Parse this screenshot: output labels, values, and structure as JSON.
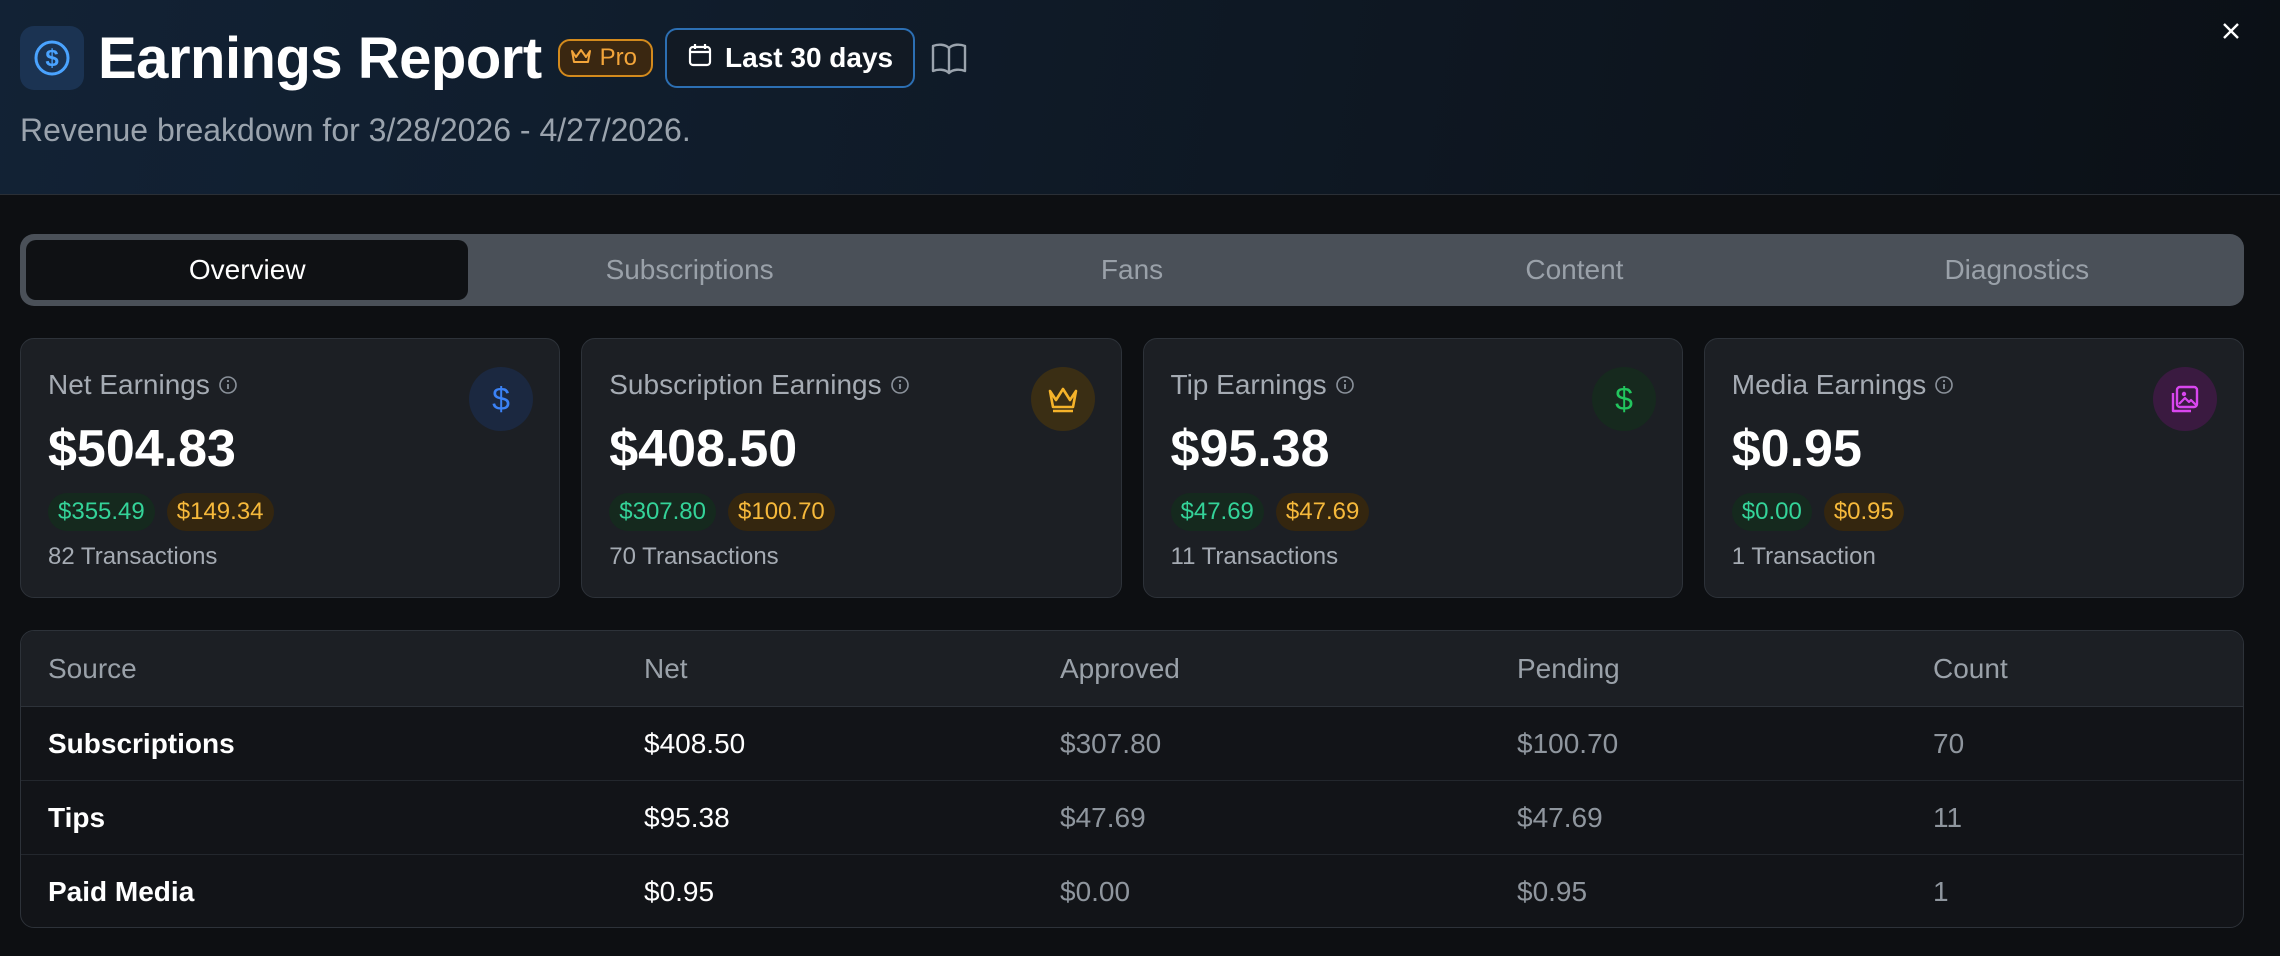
{
  "header": {
    "title": "Earnings Report",
    "badge": "Pro",
    "range_label": "Last 30 days",
    "subtitle": "Revenue breakdown for 3/28/2026 - 4/27/2026."
  },
  "tabs": [
    {
      "label": "Overview",
      "active": true
    },
    {
      "label": "Subscriptions",
      "active": false
    },
    {
      "label": "Fans",
      "active": false
    },
    {
      "label": "Content",
      "active": false
    },
    {
      "label": "Diagnostics",
      "active": false
    }
  ],
  "cards": [
    {
      "label": "Net Earnings",
      "value": "$504.83",
      "approved": "$355.49",
      "pending": "$149.34",
      "count": "82 Transactions",
      "icon": "dollar-icon",
      "color": "#3b82f6"
    },
    {
      "label": "Subscription Earnings",
      "value": "$408.50",
      "approved": "$307.80",
      "pending": "$100.70",
      "count": "70 Transactions",
      "icon": "crown-icon",
      "color": "#f5b32a"
    },
    {
      "label": "Tip Earnings",
      "value": "$95.38",
      "approved": "$47.69",
      "pending": "$47.69",
      "count": "11 Transactions",
      "icon": "dollar-icon",
      "color": "#22c55e"
    },
    {
      "label": "Media Earnings",
      "value": "$0.95",
      "approved": "$0.00",
      "pending": "$0.95",
      "count": "1 Transaction",
      "icon": "image-icon",
      "color": "#d946ef"
    }
  ],
  "table": {
    "headers": [
      "Source",
      "Net",
      "Approved",
      "Pending",
      "Count"
    ],
    "rows": [
      [
        "Subscriptions",
        "$408.50",
        "$307.80",
        "$100.70",
        "70"
      ],
      [
        "Tips",
        "$95.38",
        "$47.69",
        "$47.69",
        "11"
      ],
      [
        "Paid Media",
        "$0.95",
        "$0.00",
        "$0.95",
        "1"
      ]
    ]
  }
}
